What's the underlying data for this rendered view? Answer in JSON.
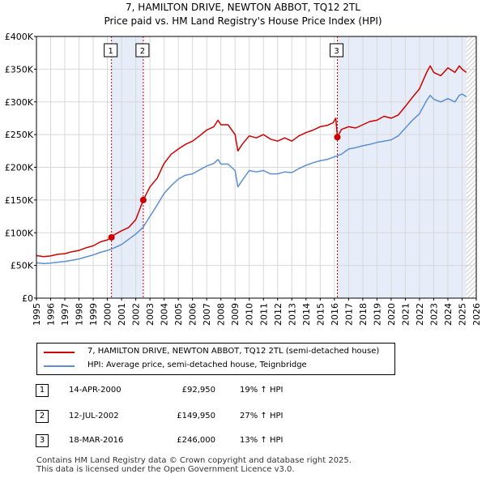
{
  "header": {
    "title_line1": "7, HAMILTON DRIVE, NEWTON ABBOT, TQ12 2TL",
    "title_line2": "Price paid vs. HM Land Registry's House Price Index (HPI)"
  },
  "chart_data": {
    "type": "line",
    "title": "Price paid vs. HM Land Registry's House Price Index (HPI)",
    "xlabel": "",
    "ylabel": "",
    "xlim": [
      1995,
      2026
    ],
    "ylim": [
      0,
      400000
    ],
    "grid": true,
    "legend_position": "below",
    "y_ticks": [
      {
        "value": 0,
        "label": "£0"
      },
      {
        "value": 50000,
        "label": "£50K"
      },
      {
        "value": 100000,
        "label": "£100K"
      },
      {
        "value": 150000,
        "label": "£150K"
      },
      {
        "value": 200000,
        "label": "£200K"
      },
      {
        "value": 250000,
        "label": "£250K"
      },
      {
        "value": 300000,
        "label": "£300K"
      },
      {
        "value": 350000,
        "label": "£350K"
      },
      {
        "value": 400000,
        "label": "£400K"
      }
    ],
    "x_ticks": [
      "1995",
      "1996",
      "1997",
      "1998",
      "1999",
      "2000",
      "2001",
      "2002",
      "2003",
      "2004",
      "2005",
      "2006",
      "2007",
      "2008",
      "2009",
      "2010",
      "2011",
      "2012",
      "2013",
      "2014",
      "2015",
      "2016",
      "2017",
      "2018",
      "2019",
      "2020",
      "2021",
      "2022",
      "2023",
      "2024",
      "2025",
      "2026"
    ],
    "shaded_periods": [
      {
        "from": 2000.29,
        "to": 2002.53
      },
      {
        "from": 2016.21,
        "to": 2025.3
      }
    ],
    "hatched_from": 2025.3,
    "series": [
      {
        "name": "7, HAMILTON DRIVE, NEWTON ABBOT, TQ12 2TL (semi-detached house)",
        "color": "#cc0000",
        "x": [
          1995.0,
          1995.5,
          1996.0,
          1996.5,
          1997.0,
          1997.5,
          1998.0,
          1998.5,
          1999.0,
          1999.5,
          2000.0,
          2000.29,
          2000.5,
          2001.0,
          2001.5,
          2002.0,
          2002.53,
          2003.0,
          2003.5,
          2004.0,
          2004.5,
          2005.0,
          2005.5,
          2006.0,
          2006.5,
          2007.0,
          2007.5,
          2007.8,
          2008.0,
          2008.5,
          2009.0,
          2009.2,
          2009.5,
          2010.0,
          2010.5,
          2011.0,
          2011.5,
          2012.0,
          2012.5,
          2013.0,
          2013.5,
          2014.0,
          2014.5,
          2015.0,
          2015.5,
          2015.9,
          2016.1,
          2016.21,
          2016.5,
          2017.0,
          2017.5,
          2018.0,
          2018.5,
          2019.0,
          2019.5,
          2020.0,
          2020.5,
          2021.0,
          2021.5,
          2022.0,
          2022.5,
          2022.75,
          2023.0,
          2023.5,
          2024.0,
          2024.5,
          2024.8,
          2025.0,
          2025.3
        ],
        "values": [
          65000,
          63500,
          64500,
          67000,
          68000,
          71000,
          73000,
          77000,
          80000,
          86000,
          89000,
          92950,
          97000,
          103000,
          108000,
          120000,
          149950,
          170000,
          183000,
          206000,
          220000,
          228000,
          235000,
          240000,
          248000,
          257000,
          262000,
          272000,
          265000,
          265000,
          250000,
          225000,
          235000,
          248000,
          245000,
          250000,
          243000,
          240000,
          245000,
          240000,
          248000,
          253000,
          257000,
          262000,
          264000,
          268000,
          275000,
          246000,
          258000,
          262000,
          260000,
          265000,
          270000,
          272000,
          278000,
          275000,
          280000,
          293000,
          307000,
          320000,
          345000,
          355000,
          345000,
          340000,
          352000,
          345000,
          355000,
          350000,
          345000
        ]
      },
      {
        "name": "HPI: Average price, semi-detached house, Teignbridge",
        "color": "#5b8fd0",
        "x": [
          1995.0,
          1995.5,
          1996.0,
          1996.5,
          1997.0,
          1997.5,
          1998.0,
          1998.5,
          1999.0,
          1999.5,
          2000.0,
          2000.5,
          2001.0,
          2001.5,
          2002.0,
          2002.5,
          2003.0,
          2003.5,
          2004.0,
          2004.5,
          2005.0,
          2005.5,
          2006.0,
          2006.5,
          2007.0,
          2007.5,
          2007.8,
          2008.0,
          2008.5,
          2009.0,
          2009.2,
          2009.5,
          2010.0,
          2010.5,
          2011.0,
          2011.5,
          2012.0,
          2012.5,
          2013.0,
          2013.5,
          2014.0,
          2014.5,
          2015.0,
          2015.5,
          2016.0,
          2016.5,
          2017.0,
          2017.5,
          2018.0,
          2018.5,
          2019.0,
          2019.5,
          2020.0,
          2020.5,
          2021.0,
          2021.5,
          2022.0,
          2022.5,
          2022.75,
          2023.0,
          2023.5,
          2024.0,
          2024.5,
          2024.8,
          2025.0,
          2025.3
        ],
        "values": [
          54000,
          53000,
          53500,
          55000,
          56000,
          58000,
          60000,
          63000,
          66000,
          70000,
          73000,
          77000,
          82000,
          90000,
          98000,
          108000,
          125000,
          142000,
          160000,
          172000,
          182000,
          188000,
          190000,
          196000,
          202000,
          206000,
          212000,
          205000,
          205000,
          195000,
          170000,
          180000,
          195000,
          193000,
          195000,
          190000,
          190000,
          193000,
          192000,
          198000,
          203000,
          207000,
          210000,
          212000,
          216000,
          220000,
          228000,
          230000,
          233000,
          235000,
          238000,
          240000,
          242000,
          248000,
          260000,
          272000,
          282000,
          302000,
          310000,
          304000,
          300000,
          305000,
          300000,
          310000,
          312000,
          308000
        ]
      }
    ],
    "sale_markers": [
      {
        "label": "1",
        "x": 2000.29,
        "value": 92950
      },
      {
        "label": "2",
        "x": 2002.53,
        "value": 149950
      },
      {
        "label": "3",
        "x": 2016.21,
        "value": 246000
      }
    ]
  },
  "colors": {
    "property": "#cc0000",
    "hpi": "#5b8fd0",
    "shade": "#e6ecf8",
    "grid": "#d8d8d8"
  },
  "legend": {
    "property_label": "7, HAMILTON DRIVE, NEWTON ABBOT, TQ12 2TL (semi-detached house)",
    "hpi_label": "HPI: Average price, semi-detached house, Teignbridge"
  },
  "sales": [
    {
      "num": "1",
      "date": "14-APR-2000",
      "price": "£92,950",
      "hpi": "19% ↑ HPI"
    },
    {
      "num": "2",
      "date": "12-JUL-2002",
      "price": "£149,950",
      "hpi": "27% ↑ HPI"
    },
    {
      "num": "3",
      "date": "18-MAR-2016",
      "price": "£246,000",
      "hpi": "13% ↑ HPI"
    }
  ],
  "footer": {
    "line1": "Contains HM Land Registry data © Crown copyright and database right 2025.",
    "line2": "This data is licensed under the Open Government Licence v3.0."
  }
}
